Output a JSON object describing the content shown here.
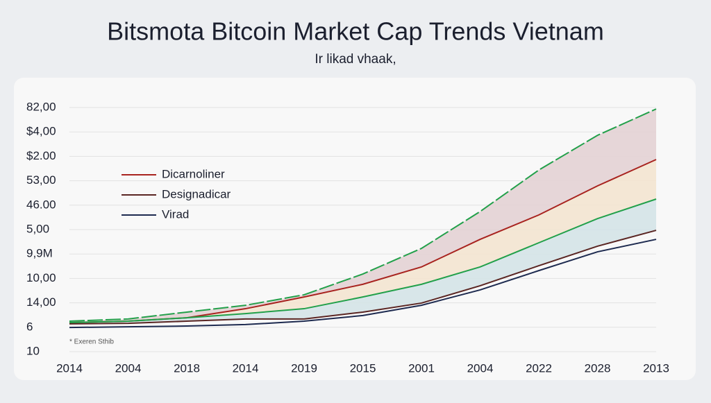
{
  "chart_data": {
    "type": "line",
    "title": "Bitsmota Bitcoin Market Cap Trends Vietnam",
    "subtitle": "Ir likad vhaak,",
    "footnote": "* Exeren Sthib",
    "categories": [
      "2014",
      "2004",
      "2018",
      "2014",
      "2019",
      "2015",
      "2001",
      "2004",
      "2022",
      "2028",
      "2013"
    ],
    "ylim": [
      0,
      10
    ],
    "yticks": [
      {
        "value": 0,
        "label": "10"
      },
      {
        "value": 1,
        "label": "6"
      },
      {
        "value": 2,
        "label": "14,00"
      },
      {
        "value": 3,
        "label": "10,00"
      },
      {
        "value": 4,
        "label": "9,9M"
      },
      {
        "value": 5,
        "label": "5,00"
      },
      {
        "value": 6,
        "label": "46.00"
      },
      {
        "value": 7,
        "label": "53,00"
      },
      {
        "value": 8,
        "label": "$2.00"
      },
      {
        "value": 9,
        "label": "$4,00"
      },
      {
        "value": 10,
        "label": "82,00"
      }
    ],
    "grid": true,
    "series": [
      {
        "color": "#22a04a",
        "dashed": true,
        "values": [
          1.25,
          1.34,
          1.62,
          1.9,
          2.33,
          3.18,
          4.23,
          5.74,
          7.44,
          8.86,
          9.94
        ]
      },
      {
        "name": "Dicarnoliner",
        "color": "#a8231f",
        "values": [
          1.19,
          1.25,
          1.39,
          1.76,
          2.24,
          2.76,
          3.47,
          4.6,
          5.6,
          6.79,
          7.87
        ]
      },
      {
        "color": "#22a04a",
        "values": [
          1.19,
          1.25,
          1.39,
          1.56,
          1.76,
          2.24,
          2.76,
          3.47,
          4.46,
          5.45,
          6.25
        ]
      },
      {
        "name": "Designadicar",
        "color": "#5a2522",
        "values": [
          1.14,
          1.16,
          1.25,
          1.34,
          1.34,
          1.62,
          1.99,
          2.7,
          3.52,
          4.32,
          4.97
        ]
      },
      {
        "name": "Virad",
        "color": "#1d2a4f",
        "values": [
          0.99,
          1.02,
          1.05,
          1.11,
          1.25,
          1.48,
          1.9,
          2.53,
          3.32,
          4.09,
          4.6
        ]
      }
    ],
    "band_colors": [
      "#e3d0d2",
      "#f3e4cf",
      "#d2e3e6"
    ]
  }
}
